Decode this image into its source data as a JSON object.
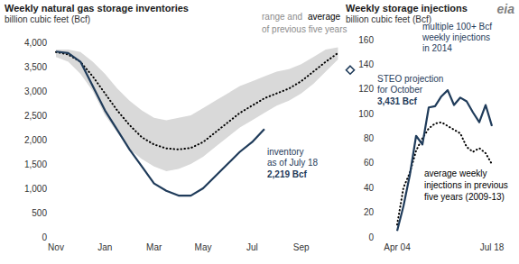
{
  "chart_data": [
    {
      "type": "line",
      "title": "Weekly natural gas storage inventories",
      "subtitle": "billion cubic feet (Bcf)",
      "categories": [
        "Nov",
        null,
        null,
        null,
        "Jan",
        null,
        null,
        null,
        "Mar",
        null,
        null,
        null,
        "May",
        null,
        null,
        null,
        "Jul",
        null,
        null,
        null,
        "Sep",
        null,
        null,
        null,
        null
      ],
      "ylim": [
        0,
        4000
      ],
      "yticks": [
        0,
        500,
        {
          "value": 1000,
          "label": "1,000"
        },
        {
          "value": 1500,
          "label": "1,500"
        },
        {
          "value": 2000,
          "label": "2,000"
        },
        {
          "value": 2500,
          "label": "2,500"
        },
        {
          "value": 3000,
          "label": "3,000"
        },
        {
          "value": 3500,
          "label": "3,500"
        },
        {
          "value": 4000,
          "label": "4,000"
        }
      ],
      "grid": false,
      "band": {
        "low": [
          3700,
          3600,
          3350,
          3000,
          2500,
          2150,
          1800,
          1600,
          1450,
          1350,
          1400,
          1500,
          1650,
          1850,
          2050,
          2250,
          2400,
          2550,
          2700,
          2800,
          2950,
          3150,
          3400,
          3650,
          null
        ],
        "high": [
          3850,
          3850,
          3800,
          3600,
          3350,
          3050,
          2800,
          2600,
          2450,
          2400,
          2450,
          2500,
          2650,
          2800,
          2950,
          3100,
          3200,
          3300,
          3400,
          3450,
          3550,
          3700,
          3850,
          3900,
          null
        ],
        "color": "#d9d9d9"
      },
      "series": [
        {
          "values": [
            3800,
            3750,
            3600,
            3300,
            2950,
            2600,
            2300,
            2050,
            1900,
            1820,
            1800,
            1830,
            1950,
            2150,
            2350,
            2550,
            2700,
            2850,
            2950,
            3050,
            3200,
            3400,
            3600,
            3780,
            null
          ],
          "color": "#000000",
          "line_style": "dotted"
        },
        {
          "values": [
            3810,
            3780,
            3600,
            3100,
            2600,
            2200,
            1800,
            1450,
            1100,
            950,
            850,
            850,
            1000,
            1250,
            1500,
            1750,
            1950,
            2219,
            null,
            null,
            null,
            null,
            null,
            null,
            null
          ],
          "color": "#1f3b5a",
          "line_style": "solid"
        },
        {
          "values": [
            null,
            null,
            null,
            null,
            null,
            null,
            null,
            null,
            null,
            null,
            null,
            null,
            null,
            null,
            null,
            null,
            null,
            null,
            null,
            null,
            null,
            null,
            null,
            null,
            3431
          ],
          "color": "#1f3b5a",
          "marker": "diamond"
        }
      ],
      "annotations": [
        {
          "text": "range and",
          "color": "#8c8c8c"
        },
        {
          "text": "average",
          "color": "#000000"
        },
        {
          "text": "of previous five years",
          "color": "#8c8c8c"
        },
        {
          "text": "STEO projection",
          "color": "#1f3b5a"
        },
        {
          "text": "for October",
          "color": "#1f3b5a"
        },
        {
          "text": "3,431 Bcf",
          "color": "#1f3b5a"
        },
        {
          "text": "inventory",
          "color": "#1f3b5a"
        },
        {
          "text": "as of July 18",
          "color": "#1f3b5a"
        },
        {
          "text": "2,219 Bcf",
          "color": "#1f3b5a"
        }
      ]
    },
    {
      "type": "line",
      "title": "Weekly storage injections",
      "subtitle": "billion cubic feet (Bcf)",
      "categories": [
        "Apr 04",
        null,
        null,
        null,
        null,
        null,
        null,
        null,
        null,
        null,
        null,
        null,
        null,
        null,
        null,
        "Jul 18"
      ],
      "ylim": [
        0,
        160
      ],
      "yticks": [
        0,
        20,
        40,
        60,
        80,
        100,
        120,
        140,
        160
      ],
      "grid": false,
      "series": [
        {
          "values": [
            10,
            40,
            52,
            70,
            80,
            88,
            92,
            93,
            90,
            87,
            84,
            73,
            69,
            72,
            68,
            59
          ],
          "color": "#000000",
          "line_style": "dotted"
        },
        {
          "values": [
            5,
            25,
            50,
            82,
            75,
            105,
            106,
            114,
            119,
            107,
            113,
            110,
            101,
            93,
            107,
            90
          ],
          "color": "#1f3b5a",
          "line_style": "solid"
        }
      ],
      "annotations": [
        {
          "text": "multiple 100+ Bcf",
          "color": "#1f3b5a"
        },
        {
          "text": "weekly injections",
          "color": "#1f3b5a"
        },
        {
          "text": "in 2014",
          "color": "#1f3b5a"
        },
        {
          "text": "average weekly",
          "color": "#000000"
        },
        {
          "text": "injections in previous",
          "color": "#000000"
        },
        {
          "text": "five years (2009-13)",
          "color": "#000000"
        },
        {
          "text": "eia",
          "color": "#7f7f7f"
        }
      ]
    }
  ]
}
